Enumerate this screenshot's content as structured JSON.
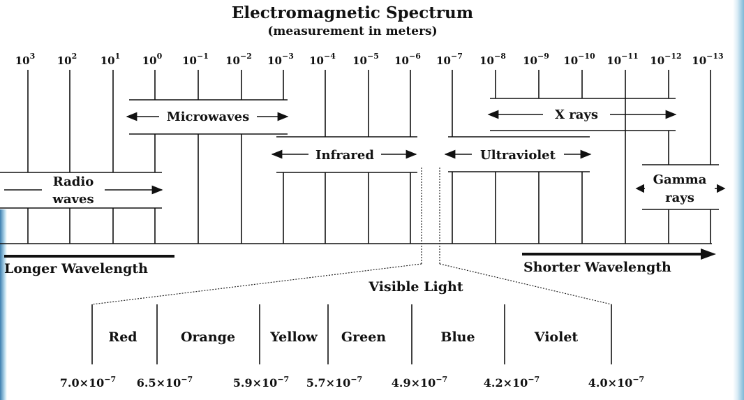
{
  "title": "Electromagnetic Spectrum",
  "subtitle": "(measurement in meters)",
  "ticks": [
    {
      "base": "10",
      "exp": "3"
    },
    {
      "base": "10",
      "exp": "2"
    },
    {
      "base": "10",
      "exp": "1"
    },
    {
      "base": "10",
      "exp": "0"
    },
    {
      "base": "10",
      "exp": "−1"
    },
    {
      "base": "10",
      "exp": "−2"
    },
    {
      "base": "10",
      "exp": "−3"
    },
    {
      "base": "10",
      "exp": "−4"
    },
    {
      "base": "10",
      "exp": "−5"
    },
    {
      "base": "10",
      "exp": "−6"
    },
    {
      "base": "10",
      "exp": "−7"
    },
    {
      "base": "10",
      "exp": "−8"
    },
    {
      "base": "10",
      "exp": "−9"
    },
    {
      "base": "10",
      "exp": "−10"
    },
    {
      "base": "10",
      "exp": "−11"
    },
    {
      "base": "10",
      "exp": "−12"
    },
    {
      "base": "10",
      "exp": "−13"
    }
  ],
  "bands": {
    "microwaves": "Microwaves",
    "xrays": "X rays",
    "infrared": "Infrared",
    "ultraviolet": "Ultraviolet",
    "radio_1": "Radio",
    "radio_2": "waves",
    "gamma_1": "Gamma",
    "gamma_2": "rays"
  },
  "axis": {
    "longer": "Longer Wavelength",
    "shorter": "Shorter Wavelength"
  },
  "visible": {
    "title": "Visible Light",
    "colors": [
      "Red",
      "Orange",
      "Yellow",
      "Green",
      "Blue",
      "Violet"
    ],
    "wavelengths": [
      {
        "mant": "7.0×10",
        "exp": "−7"
      },
      {
        "mant": "6.5×10",
        "exp": "−7"
      },
      {
        "mant": "5.9×10",
        "exp": "−7"
      },
      {
        "mant": "5.7×10",
        "exp": "−7"
      },
      {
        "mant": "4.9×10",
        "exp": "−7"
      },
      {
        "mant": "4.2×10",
        "exp": "−7"
      },
      {
        "mant": "4.0×10",
        "exp": "−7"
      }
    ]
  },
  "colors": {
    "ink": "#111111",
    "edge_blue": "#3e7fb0"
  }
}
